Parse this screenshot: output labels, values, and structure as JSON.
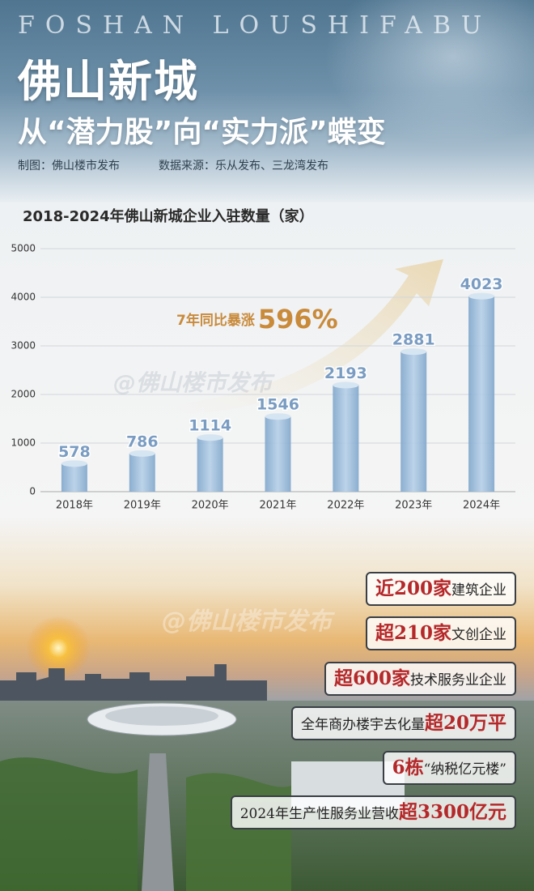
{
  "header": {
    "english": "FOSHAN LOUSHIFABU",
    "title": "佛山新城",
    "subtitle": "从“潜力股”向“实力派”蝶变",
    "maker": "制图：佛山楼市发布",
    "source": "数据来源：乐从发布、三龙湾发布"
  },
  "watermark": "@佛山楼市发布",
  "chart_data": {
    "type": "bar",
    "title": "2018-2024年佛山新城企业入驻数量（家）",
    "categories": [
      "2018年",
      "2019年",
      "2020年",
      "2021年",
      "2022年",
      "2023年",
      "2024年"
    ],
    "values": [
      578,
      786,
      1114,
      1546,
      2193,
      2881,
      4023
    ],
    "color": "#9ec0df",
    "ylim": [
      0,
      5000
    ],
    "yticks": [
      0,
      1000,
      2000,
      3000,
      4000,
      5000
    ],
    "grid": true,
    "annotation": {
      "prefix": "7年同比暴涨",
      "highlight": "596%"
    }
  },
  "highlights": [
    [
      {
        "text": "近200家",
        "bold": true
      },
      {
        "text": "建筑企业",
        "bold": false
      }
    ],
    [
      {
        "text": "超210家",
        "bold": true
      },
      {
        "text": "文创企业",
        "bold": false
      }
    ],
    [
      {
        "text": "超600家",
        "bold": true
      },
      {
        "text": "技术服务业企业",
        "bold": false
      }
    ],
    [
      {
        "text": "全年商办楼宇去化量",
        "bold": false
      },
      {
        "text": "超20万平",
        "bold": true
      }
    ],
    [
      {
        "text": "6栋",
        "bold": true
      },
      {
        "text": "“纳税亿元楼”",
        "bold": false
      }
    ],
    [
      {
        "text": "2024年生产性服务业营收",
        "bold": false
      },
      {
        "text": "超3300亿元",
        "bold": true
      }
    ]
  ]
}
